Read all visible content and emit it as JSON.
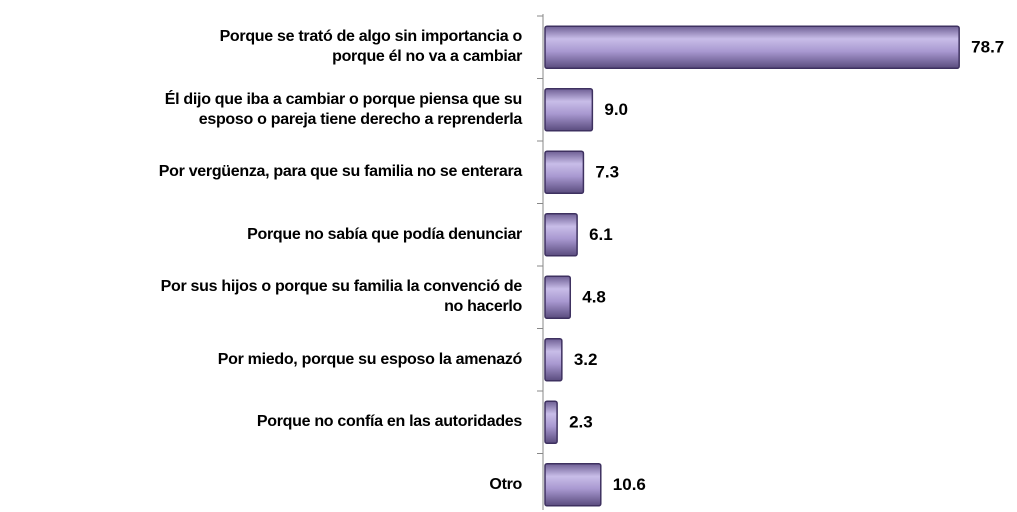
{
  "chart_data": {
    "type": "bar",
    "orientation": "horizontal",
    "categories": [
      "Porque se trató de algo sin importancia o\nporque él no va a cambiar",
      "Él dijo que iba a cambiar o porque piensa que su\nesposo o pareja tiene derecho a reprenderla",
      "Por vergüenza, para que su familia no se enterara",
      "Porque no sabía que podía denunciar",
      "Por sus hijos o porque su familia la convenció de\nno hacerlo",
      "Por miedo, porque su esposo la amenazó",
      "Porque no confía en las autoridades",
      "Otro"
    ],
    "values": [
      78.7,
      9.0,
      7.3,
      6.1,
      4.8,
      3.2,
      2.3,
      10.6
    ],
    "value_labels": [
      "78.7",
      "9.0",
      "7.3",
      "6.1",
      "4.8",
      "3.2",
      "2.3",
      "10.6"
    ],
    "color": "#a898d0",
    "xlim": [
      0,
      80
    ]
  }
}
